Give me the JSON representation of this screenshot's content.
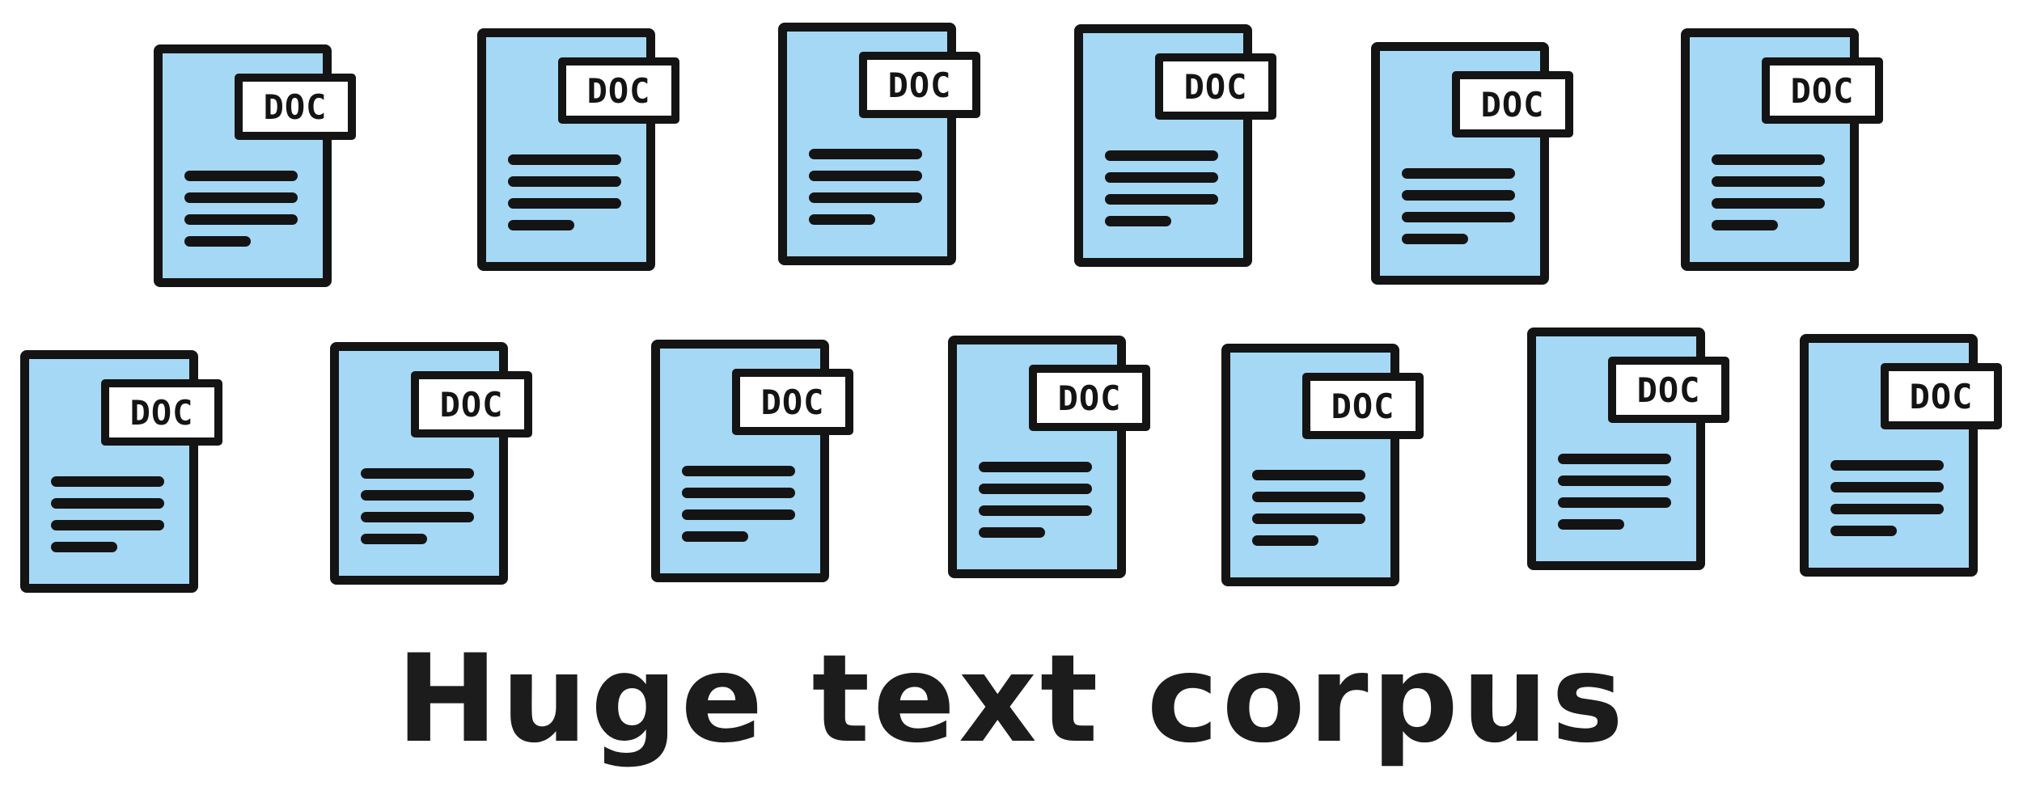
{
  "colors": {
    "doc_fill": "#a4d8f5",
    "outline": "#141414",
    "label_bg": "#ffffff"
  },
  "documents": [
    {
      "label": "DOC"
    },
    {
      "label": "DOC"
    },
    {
      "label": "DOC"
    },
    {
      "label": "DOC"
    },
    {
      "label": "DOC"
    },
    {
      "label": "DOC"
    },
    {
      "label": "DOC"
    },
    {
      "label": "DOC"
    },
    {
      "label": "DOC"
    },
    {
      "label": "DOC"
    },
    {
      "label": "DOC"
    },
    {
      "label": "DOC"
    },
    {
      "label": "DOC"
    }
  ],
  "caption": "Huge text corpus"
}
